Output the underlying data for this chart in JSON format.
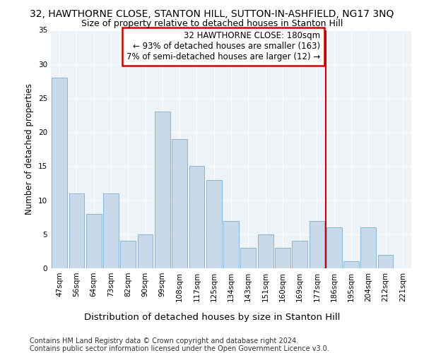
{
  "title": "32, HAWTHORNE CLOSE, STANTON HILL, SUTTON-IN-ASHFIELD, NG17 3NQ",
  "subtitle": "Size of property relative to detached houses in Stanton Hill",
  "xlabel": "Distribution of detached houses by size in Stanton Hill",
  "ylabel": "Number of detached properties",
  "categories": [
    "47sqm",
    "56sqm",
    "64sqm",
    "73sqm",
    "82sqm",
    "90sqm",
    "99sqm",
    "108sqm",
    "117sqm",
    "125sqm",
    "134sqm",
    "143sqm",
    "151sqm",
    "160sqm",
    "169sqm",
    "177sqm",
    "186sqm",
    "195sqm",
    "204sqm",
    "212sqm",
    "221sqm"
  ],
  "values": [
    28,
    11,
    8,
    11,
    4,
    5,
    23,
    19,
    15,
    13,
    7,
    3,
    5,
    3,
    4,
    7,
    6,
    1,
    6,
    2,
    0
  ],
  "bar_color": "#c8d9ea",
  "bar_edge_color": "#8ab4d4",
  "vline_index": 15,
  "annotation_text_line1": "32 HAWTHORNE CLOSE: 180sqm",
  "annotation_text_line2": "← 93% of detached houses are smaller (163)",
  "annotation_text_line3": "7% of semi-detached houses are larger (12) →",
  "annotation_box_color": "#ffffff",
  "annotation_box_edge_color": "#cc0000",
  "vline_color": "#cc0000",
  "ylim": [
    0,
    35
  ],
  "yticks": [
    0,
    5,
    10,
    15,
    20,
    25,
    30,
    35
  ],
  "footnote_line1": "Contains HM Land Registry data © Crown copyright and database right 2024.",
  "footnote_line2": "Contains public sector information licensed under the Open Government Licence v3.0.",
  "background_color": "#ffffff",
  "plot_bg_color": "#eef3f8",
  "grid_color": "#ffffff",
  "title_fontsize": 10,
  "subtitle_fontsize": 9,
  "xlabel_fontsize": 9.5,
  "ylabel_fontsize": 8.5,
  "tick_fontsize": 7.5,
  "annotation_fontsize": 8.5,
  "footnote_fontsize": 7
}
